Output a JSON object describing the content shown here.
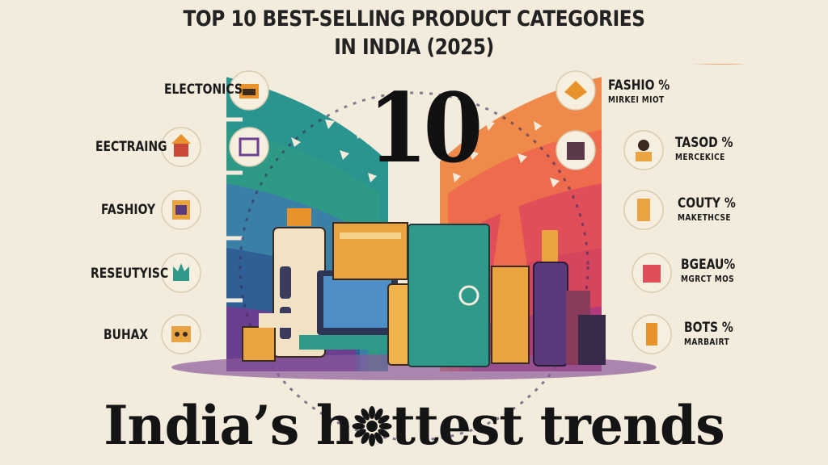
{
  "header": {
    "title_line1": "TOP 10 BEST-SELLING PRODUCT CATEGORIES",
    "title_line2": "IN INDIA (2025)"
  },
  "big_number": "10",
  "left_items": [
    {
      "label": "ELECTONICS",
      "icon": "storefront-icon"
    },
    {
      "label": "EECTRAING",
      "icon": "shop-stall-icon"
    },
    {
      "label": "FASHIOY",
      "icon": "wardrobe-icon"
    },
    {
      "label": "RESEUTYISC",
      "icon": "plant-box-icon"
    },
    {
      "label": "BUHAX",
      "icon": "speaker-icon"
    }
  ],
  "center_left_icon": "chip-icon",
  "right_items": [
    {
      "label": "FASHIO %",
      "sub": "MIRKEI MIOT",
      "icon": "fabric-stack-icon"
    },
    {
      "label": "TASOD %",
      "sub": "MERCEKICE",
      "icon": "person-icon"
    },
    {
      "label": "COUTY %",
      "sub": "MAKETHCSE",
      "icon": "rack-icon"
    },
    {
      "label": "BGEAU%",
      "sub": "MGRCT MOS",
      "icon": "gift-box-icon"
    },
    {
      "label": "BOTS %",
      "sub": "MARBAIRT",
      "icon": "bottle-icon"
    }
  ],
  "center_right_icon": "cube-box-icon",
  "footer": {
    "prefix": "India’s h",
    "suffix": "ttest trends"
  }
}
